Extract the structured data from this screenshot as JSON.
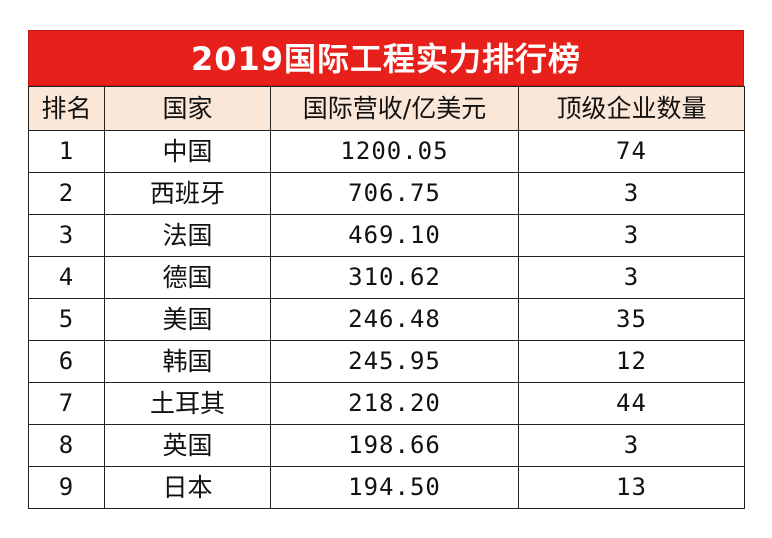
{
  "title": "2019国际工程实力排行榜",
  "headers": [
    "排名",
    "国家",
    "国际营收/亿美元",
    "顶级企业数量"
  ],
  "rows": [
    {
      "rank": "1",
      "country": "中国",
      "revenue": "1200.05",
      "companies": "74"
    },
    {
      "rank": "2",
      "country": "西班牙",
      "revenue": "706.75",
      "companies": "3"
    },
    {
      "rank": "3",
      "country": "法国",
      "revenue": "469.10",
      "companies": "3"
    },
    {
      "rank": "4",
      "country": "德国",
      "revenue": "310.62",
      "companies": "3"
    },
    {
      "rank": "5",
      "country": "美国",
      "revenue": "246.48",
      "companies": "35"
    },
    {
      "rank": "6",
      "country": "韩国",
      "revenue": "245.95",
      "companies": "12"
    },
    {
      "rank": "7",
      "country": "土耳其",
      "revenue": "218.20",
      "companies": "44"
    },
    {
      "rank": "8",
      "country": "英国",
      "revenue": "198.66",
      "companies": "3"
    },
    {
      "rank": "9",
      "country": "日本",
      "revenue": "194.50",
      "companies": "13"
    }
  ],
  "colors": {
    "title_bg": "#e8201b",
    "header_bg": "#fbe7d7",
    "border": "#222222"
  }
}
